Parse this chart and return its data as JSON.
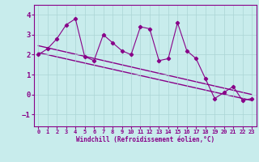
{
  "xlabel": "Windchill (Refroidissement éolien,°C)",
  "bg_color": "#c8ecec",
  "grid_color": "#aad4d4",
  "line_color": "#880088",
  "xlim": [
    -0.5,
    23.5
  ],
  "ylim": [
    -1.6,
    4.5
  ],
  "yticks": [
    -1,
    0,
    1,
    2,
    3,
    4
  ],
  "xticks": [
    0,
    1,
    2,
    3,
    4,
    5,
    6,
    7,
    8,
    9,
    10,
    11,
    12,
    13,
    14,
    15,
    16,
    17,
    18,
    19,
    20,
    21,
    22,
    23
  ],
  "data_x": [
    0,
    1,
    2,
    3,
    4,
    5,
    6,
    7,
    8,
    9,
    10,
    11,
    12,
    13,
    14,
    15,
    16,
    17,
    18,
    19,
    20,
    21,
    22,
    23
  ],
  "data_y": [
    2.0,
    2.3,
    2.8,
    3.5,
    3.8,
    1.9,
    1.7,
    3.0,
    2.6,
    2.2,
    2.0,
    3.4,
    3.3,
    1.7,
    1.8,
    3.6,
    2.2,
    1.8,
    0.8,
    -0.2,
    0.1,
    0.4,
    -0.3,
    -0.2
  ],
  "trend1_x": [
    0,
    23
  ],
  "trend1_y": [
    2.1,
    -0.3
  ],
  "trend2_x": [
    0,
    23
  ],
  "trend2_y": [
    2.45,
    0.0
  ]
}
